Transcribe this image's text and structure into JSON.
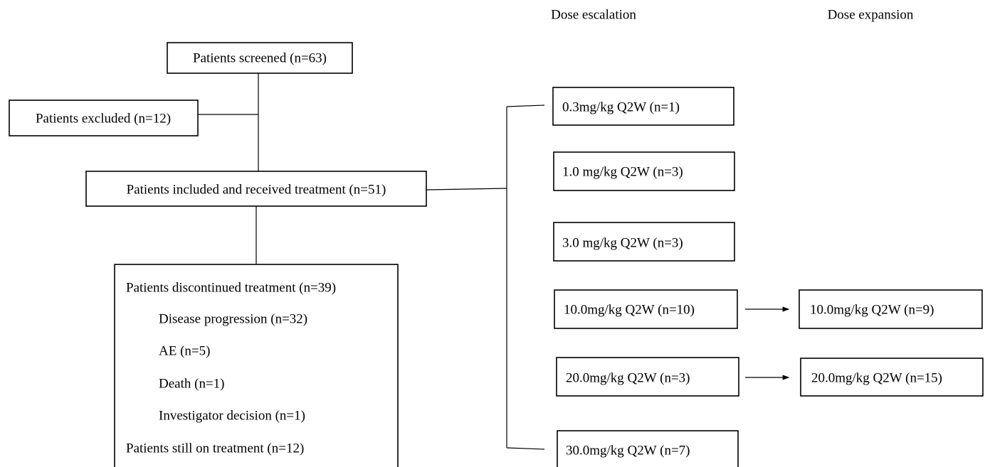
{
  "headers": {
    "escalation": "Dose escalation",
    "expansion": "Dose expansion"
  },
  "nodes": {
    "screened": "Patients screened (n=63)",
    "excluded": "Patients excluded (n=12)",
    "included": "Patients included and received treatment (n=51)",
    "status": {
      "discontinued": "Patients discontinued treatment (n=39)",
      "reasons": [
        "Disease progression (n=32)",
        "AE (n=5)",
        "Death (n=1)",
        "Investigator decision (n=1)"
      ],
      "ongoing": "Patients still on treatment (n=12)"
    },
    "escalation": [
      "0.3mg/kg Q2W (n=1)",
      "1.0 mg/kg Q2W (n=3)",
      "3.0 mg/kg Q2W (n=3)",
      "10.0mg/kg Q2W (n=10)",
      "20.0mg/kg Q2W (n=3)",
      "30.0mg/kg Q2W (n=7)"
    ],
    "expansion": [
      "10.0mg/kg Q2W (n=9)",
      "20.0mg/kg Q2W (n=15)"
    ]
  }
}
